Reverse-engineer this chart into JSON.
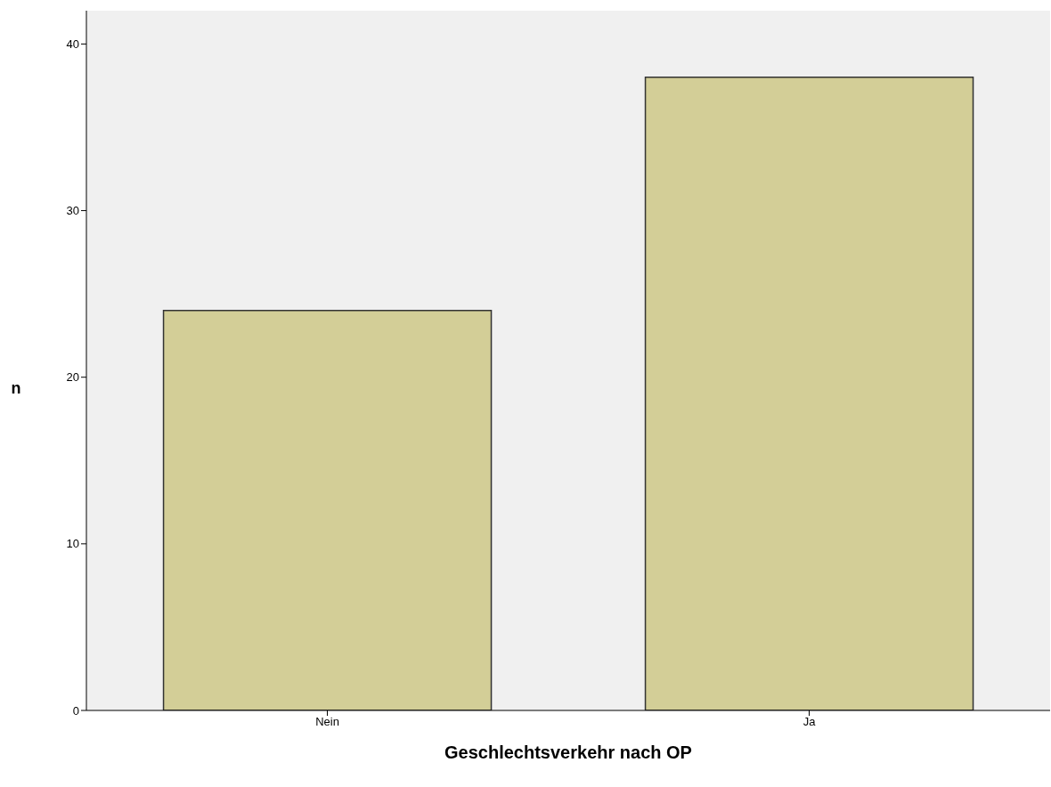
{
  "chart_data": {
    "type": "bar",
    "xlabel": "Geschlechtsverkehr nach OP",
    "ylabel": "n",
    "categories": [
      "Nein",
      "Ja"
    ],
    "values": [
      24,
      38
    ],
    "color": "#d3ce97",
    "ylim": [
      0,
      42
    ],
    "yticks": [
      0,
      10,
      20,
      30,
      40
    ]
  }
}
